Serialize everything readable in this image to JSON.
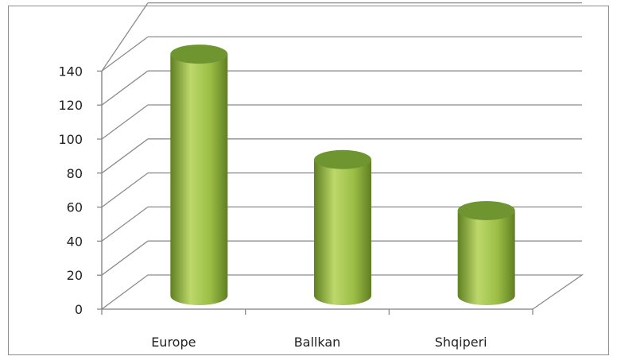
{
  "chart_data": {
    "type": "bar",
    "style": "3d-cylinder",
    "title": "",
    "xlabel": "",
    "ylabel": "",
    "categories": [
      "Europe",
      "Ballkan",
      "Shqiperi"
    ],
    "series": [
      {
        "values": [
          142,
          80,
          50
        ]
      }
    ],
    "ylim": [
      0,
      140
    ],
    "yticks": [
      0,
      20,
      40,
      60,
      80,
      100,
      120,
      140
    ],
    "grid": true,
    "legend": "none",
    "colors": {
      "bar_light": "#bcd86a",
      "bar_mid": "#8fb43a",
      "bar_dark": "#5f7f22",
      "bar_top": "#6f9530",
      "gridline": "#8c8c8c",
      "axis": "#7f7f7f"
    }
  }
}
